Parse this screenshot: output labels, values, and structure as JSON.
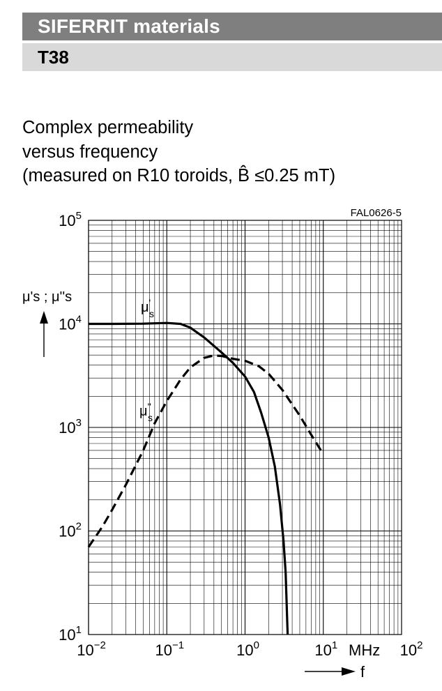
{
  "header": {
    "section_title": "SIFERRIT materials",
    "material": "T38"
  },
  "caption": {
    "line1": "Complex permeability",
    "line2": "versus frequency",
    "line3": "(measured on R10 toroids, B̂ ≤0.25 mT)"
  },
  "chart_data": {
    "type": "line",
    "figure_id": "FAL0626-5",
    "x_scale": "log",
    "y_scale": "log",
    "xlim": [
      0.01,
      100
    ],
    "ylim": [
      10,
      100000
    ],
    "x_unit": "MHz",
    "x_axis_symbol": "f",
    "y_axis_label": "μ's ; μ''s",
    "grid": true,
    "x_ticks": [
      {
        "base": "10",
        "exp": "−2"
      },
      {
        "base": "10",
        "exp": "−1"
      },
      {
        "base": "10",
        "exp": "0"
      },
      {
        "base": "10",
        "exp": "1"
      },
      {
        "base": "10",
        "exp": "2"
      }
    ],
    "y_ticks": [
      {
        "base": "10",
        "exp": "1"
      },
      {
        "base": "10",
        "exp": "2"
      },
      {
        "base": "10",
        "exp": "3"
      },
      {
        "base": "10",
        "exp": "4"
      },
      {
        "base": "10",
        "exp": "5"
      }
    ],
    "series": [
      {
        "name": "μ's",
        "label_main": "μ",
        "label_sup": "'",
        "label_sub": "s",
        "style": "solid",
        "color": "#000000",
        "points": [
          [
            0.01,
            10000
          ],
          [
            0.02,
            10000
          ],
          [
            0.05,
            10050
          ],
          [
            0.1,
            10200
          ],
          [
            0.15,
            10000
          ],
          [
            0.2,
            9200
          ],
          [
            0.3,
            7400
          ],
          [
            0.5,
            5300
          ],
          [
            0.7,
            4200
          ],
          [
            1.0,
            3100
          ],
          [
            1.3,
            2200
          ],
          [
            1.6,
            1400
          ],
          [
            2.0,
            800
          ],
          [
            2.4,
            420
          ],
          [
            2.8,
            180
          ],
          [
            3.1,
            80
          ],
          [
            3.3,
            40
          ],
          [
            3.5,
            10
          ]
        ]
      },
      {
        "name": "μ''s",
        "label_main": "μ",
        "label_sup": "''",
        "label_sub": "s",
        "style": "dashed",
        "color": "#000000",
        "points": [
          [
            0.01,
            70
          ],
          [
            0.015,
            110
          ],
          [
            0.02,
            160
          ],
          [
            0.03,
            280
          ],
          [
            0.05,
            600
          ],
          [
            0.07,
            1100
          ],
          [
            0.1,
            1800
          ],
          [
            0.15,
            2900
          ],
          [
            0.2,
            3800
          ],
          [
            0.3,
            4700
          ],
          [
            0.4,
            4950
          ],
          [
            0.5,
            4900
          ],
          [
            0.7,
            4600
          ],
          [
            1.0,
            4400
          ],
          [
            1.5,
            3900
          ],
          [
            2.0,
            3300
          ],
          [
            3.0,
            2300
          ],
          [
            5.0,
            1300
          ],
          [
            7.0,
            850
          ],
          [
            10.0,
            550
          ]
        ]
      }
    ]
  }
}
